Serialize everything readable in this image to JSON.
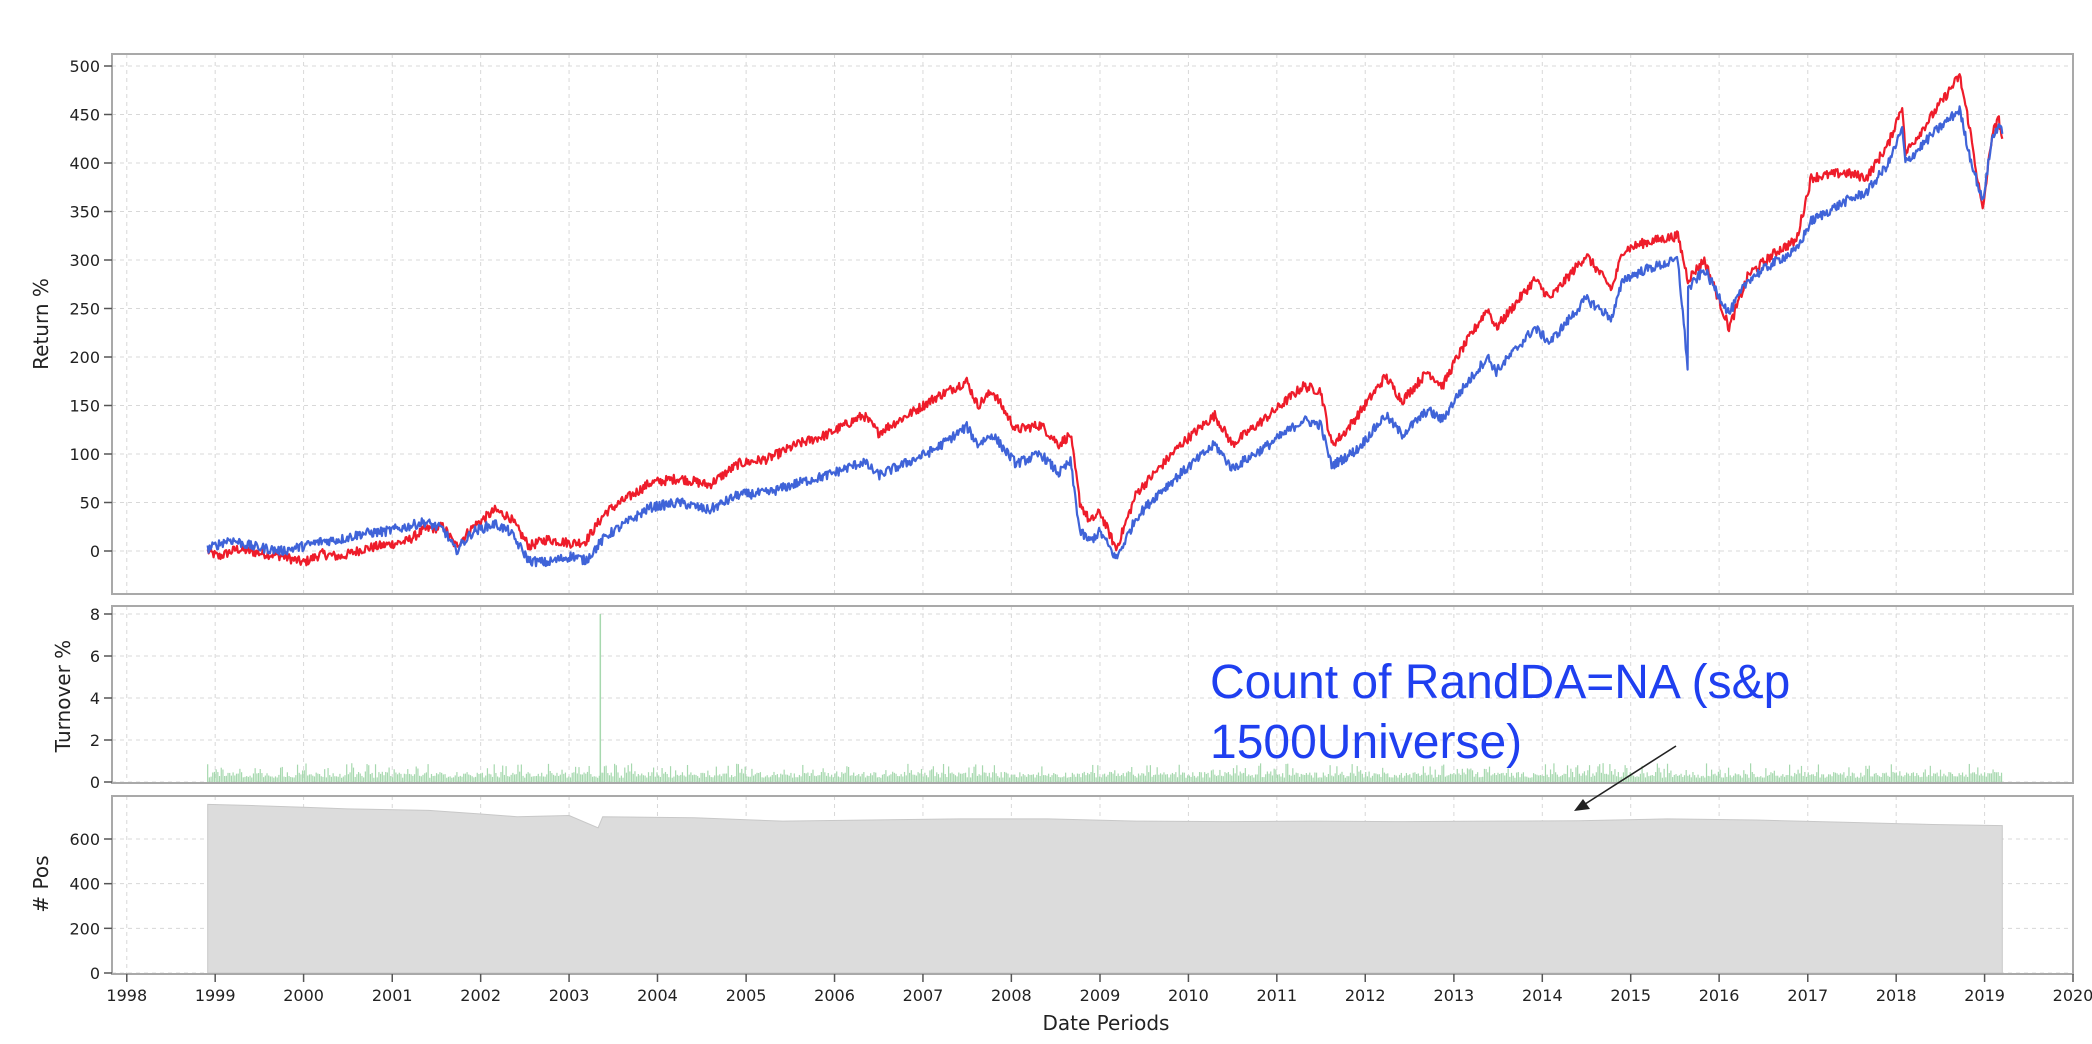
{
  "chart_data": [
    {
      "type": "line",
      "panel": "returns",
      "ylabel": "Return %",
      "ylim": [
        -45,
        520
      ],
      "yticks": [
        0,
        50,
        100,
        150,
        200,
        250,
        300,
        350,
        400,
        450,
        500
      ],
      "grid": true,
      "series": [
        {
          "color": "#ee1c2a",
          "points": [
            [
              "1998-12-01",
              0
            ],
            [
              "1999-01-15",
              -6
            ],
            [
              "1999-04-01",
              2
            ],
            [
              "1999-07-01",
              -2
            ],
            [
              "1999-10-01",
              -5
            ],
            [
              "2000-01-01",
              -12
            ],
            [
              "2000-03-15",
              -3
            ],
            [
              "2000-06-01",
              -6
            ],
            [
              "2000-09-01",
              2
            ],
            [
              "2000-12-01",
              6
            ],
            [
              "2001-03-01",
              10
            ],
            [
              "2001-05-15",
              22
            ],
            [
              "2001-08-01",
              25
            ],
            [
              "2001-09-20",
              5
            ],
            [
              "2001-12-01",
              25
            ],
            [
              "2002-03-01",
              42
            ],
            [
              "2002-05-01",
              35
            ],
            [
              "2002-07-20",
              5
            ],
            [
              "2002-10-01",
              12
            ],
            [
              "2003-01-15",
              8
            ],
            [
              "2003-03-10",
              10
            ],
            [
              "2003-06-01",
              40
            ],
            [
              "2003-09-01",
              55
            ],
            [
              "2003-12-01",
              70
            ],
            [
              "2004-04-01",
              75
            ],
            [
              "2004-08-01",
              68
            ],
            [
              "2004-12-01",
              90
            ],
            [
              "2005-04-01",
              95
            ],
            [
              "2005-08-01",
              110
            ],
            [
              "2005-12-01",
              120
            ],
            [
              "2006-05-01",
              140
            ],
            [
              "2006-07-01",
              122
            ],
            [
              "2006-12-01",
              145
            ],
            [
              "2007-02-20",
              158
            ],
            [
              "2007-07-01",
              175
            ],
            [
              "2007-08-15",
              150
            ],
            [
              "2007-10-15",
              165
            ],
            [
              "2008-01-20",
              125
            ],
            [
              "2008-05-01",
              130
            ],
            [
              "2008-07-15",
              110
            ],
            [
              "2008-09-01",
              120
            ],
            [
              "2008-10-10",
              50
            ],
            [
              "2008-11-20",
              30
            ],
            [
              "2009-01-01",
              40
            ],
            [
              "2009-03-09",
              2
            ],
            [
              "2009-06-01",
              60
            ],
            [
              "2009-09-01",
              85
            ],
            [
              "2009-12-01",
              110
            ],
            [
              "2010-04-20",
              140
            ],
            [
              "2010-07-01",
              110
            ],
            [
              "2010-12-01",
              140
            ],
            [
              "2011-04-20",
              170
            ],
            [
              "2011-07-01",
              165
            ],
            [
              "2011-08-15",
              110
            ],
            [
              "2011-10-01",
              120
            ],
            [
              "2011-12-01",
              140
            ],
            [
              "2012-03-25",
              180
            ],
            [
              "2012-06-01",
              155
            ],
            [
              "2012-09-15",
              185
            ],
            [
              "2012-11-15",
              170
            ],
            [
              "2013-01-15",
              200
            ],
            [
              "2013-05-20",
              250
            ],
            [
              "2013-06-25",
              230
            ],
            [
              "2013-12-01",
              280
            ],
            [
              "2014-02-01",
              260
            ],
            [
              "2014-07-01",
              305
            ],
            [
              "2014-10-15",
              270
            ],
            [
              "2014-12-01",
              310
            ],
            [
              "2015-03-01",
              318
            ],
            [
              "2015-07-15",
              325
            ],
            [
              "2015-08-25",
              280
            ],
            [
              "2015-11-01",
              300
            ],
            [
              "2016-02-11",
              230
            ],
            [
              "2016-05-01",
              285
            ],
            [
              "2016-09-01",
              310
            ],
            [
              "2016-11-15",
              320
            ],
            [
              "2017-01-15",
              385
            ],
            [
              "2017-06-01",
              390
            ],
            [
              "2017-09-01",
              385
            ],
            [
              "2017-12-01",
              420
            ],
            [
              "2018-01-26",
              460
            ],
            [
              "2018-02-08",
              410
            ],
            [
              "2018-06-01",
              450
            ],
            [
              "2018-09-20",
              490
            ],
            [
              "2018-10-29",
              440
            ],
            [
              "2018-12-24",
              350
            ],
            [
              "2019-02-01",
              430
            ],
            [
              "2019-03-01",
              445
            ],
            [
              "2019-03-15",
              425
            ]
          ]
        },
        {
          "color": "#3f63d8",
          "points": [
            [
              "1998-12-01",
              2
            ],
            [
              "1999-03-01",
              12
            ],
            [
              "1999-06-01",
              5
            ],
            [
              "1999-10-01",
              0
            ],
            [
              "2000-01-01",
              5
            ],
            [
              "2000-03-15",
              10
            ],
            [
              "2000-06-01",
              12
            ],
            [
              "2000-09-01",
              18
            ],
            [
              "2000-12-01",
              20
            ],
            [
              "2001-03-01",
              25
            ],
            [
              "2001-05-15",
              30
            ],
            [
              "2001-08-01",
              22
            ],
            [
              "2001-09-20",
              0
            ],
            [
              "2001-12-01",
              20
            ],
            [
              "2002-03-01",
              28
            ],
            [
              "2002-05-01",
              20
            ],
            [
              "2002-07-20",
              -10
            ],
            [
              "2002-10-01",
              -12
            ],
            [
              "2003-01-15",
              -5
            ],
            [
              "2003-03-10",
              -10
            ],
            [
              "2003-06-01",
              15
            ],
            [
              "2003-09-01",
              30
            ],
            [
              "2003-12-01",
              45
            ],
            [
              "2004-04-01",
              50
            ],
            [
              "2004-08-01",
              42
            ],
            [
              "2004-12-01",
              58
            ],
            [
              "2005-04-01",
              60
            ],
            [
              "2005-08-01",
              70
            ],
            [
              "2005-12-01",
              78
            ],
            [
              "2006-05-01",
              92
            ],
            [
              "2006-07-01",
              78
            ],
            [
              "2006-12-01",
              95
            ],
            [
              "2007-02-20",
              105
            ],
            [
              "2007-07-01",
              128
            ],
            [
              "2007-08-15",
              110
            ],
            [
              "2007-10-15",
              120
            ],
            [
              "2008-01-20",
              90
            ],
            [
              "2008-05-01",
              100
            ],
            [
              "2008-07-15",
              80
            ],
            [
              "2008-09-01",
              92
            ],
            [
              "2008-10-10",
              20
            ],
            [
              "2008-11-20",
              10
            ],
            [
              "2009-01-01",
              20
            ],
            [
              "2009-03-09",
              -8
            ],
            [
              "2009-06-01",
              35
            ],
            [
              "2009-09-01",
              60
            ],
            [
              "2009-12-01",
              80
            ],
            [
              "2010-04-20",
              110
            ],
            [
              "2010-07-01",
              85
            ],
            [
              "2010-12-01",
              110
            ],
            [
              "2011-04-20",
              135
            ],
            [
              "2011-07-01",
              130
            ],
            [
              "2011-08-15",
              88
            ],
            [
              "2011-10-01",
              95
            ],
            [
              "2011-12-01",
              105
            ],
            [
              "2012-03-25",
              140
            ],
            [
              "2012-06-01",
              120
            ],
            [
              "2012-09-15",
              145
            ],
            [
              "2012-11-15",
              135
            ],
            [
              "2013-01-15",
              160
            ],
            [
              "2013-05-20",
              200
            ],
            [
              "2013-06-25",
              185
            ],
            [
              "2013-12-01",
              230
            ],
            [
              "2014-02-01",
              215
            ],
            [
              "2014-07-01",
              260
            ],
            [
              "2014-10-15",
              240
            ],
            [
              "2014-12-01",
              280
            ],
            [
              "2015-03-01",
              290
            ],
            [
              "2015-07-15",
              300
            ],
            [
              "2015-08-24",
              190
            ],
            [
              "2015-08-26",
              270
            ],
            [
              "2015-11-01",
              290
            ],
            [
              "2016-02-11",
              245
            ],
            [
              "2016-05-01",
              280
            ],
            [
              "2016-09-01",
              300
            ],
            [
              "2016-11-15",
              310
            ],
            [
              "2017-01-15",
              340
            ],
            [
              "2017-06-01",
              360
            ],
            [
              "2017-09-01",
              370
            ],
            [
              "2017-12-01",
              400
            ],
            [
              "2018-01-26",
              435
            ],
            [
              "2018-02-08",
              400
            ],
            [
              "2018-06-01",
              430
            ],
            [
              "2018-09-20",
              455
            ],
            [
              "2018-10-29",
              410
            ],
            [
              "2018-12-24",
              360
            ],
            [
              "2019-02-01",
              425
            ],
            [
              "2019-03-01",
              440
            ],
            [
              "2019-03-15",
              430
            ]
          ]
        }
      ]
    },
    {
      "type": "bar",
      "panel": "turnover",
      "ylabel": "Turnover %",
      "ylim": [
        0,
        8.3
      ],
      "yticks": [
        0,
        2,
        4,
        6,
        8
      ],
      "grid": true,
      "color": "#a6d8ae",
      "x_start": "1998-12-01",
      "x_end": "2019-03-15",
      "typical_values": [
        0.2,
        0.9
      ],
      "spikes": [
        [
          "2003-05-10",
          8.0
        ]
      ]
    },
    {
      "type": "area",
      "panel": "positions",
      "ylabel": "# Pos",
      "ylim": [
        0,
        770
      ],
      "yticks": [
        0,
        200,
        400,
        600
      ],
      "grid": true,
      "color": "#dcdcdc",
      "points": [
        [
          "1998-12-01",
          755
        ],
        [
          "1999-06-01",
          750
        ],
        [
          "2000-01-01",
          742
        ],
        [
          "2000-07-01",
          735
        ],
        [
          "2001-06-01",
          728
        ],
        [
          "2002-01-01",
          712
        ],
        [
          "2002-06-01",
          700
        ],
        [
          "2003-01-01",
          705
        ],
        [
          "2003-05-01",
          650
        ],
        [
          "2003-05-20",
          700
        ],
        [
          "2004-06-01",
          695
        ],
        [
          "2005-06-01",
          680
        ],
        [
          "2006-06-01",
          685
        ],
        [
          "2007-06-01",
          690
        ],
        [
          "2008-06-01",
          690
        ],
        [
          "2009-06-01",
          680
        ],
        [
          "2010-06-01",
          678
        ],
        [
          "2011-06-01",
          680
        ],
        [
          "2012-06-01",
          678
        ],
        [
          "2013-06-01",
          680
        ],
        [
          "2014-06-01",
          682
        ],
        [
          "2015-06-01",
          690
        ],
        [
          "2016-06-01",
          685
        ],
        [
          "2017-06-01",
          675
        ],
        [
          "2018-06-01",
          665
        ],
        [
          "2019-03-15",
          660
        ]
      ]
    }
  ],
  "x_axis": {
    "label": "Date Periods",
    "range": [
      "1997-11-01",
      "2020-01-01"
    ],
    "tick_labels": [
      "1998",
      "1999",
      "2000",
      "2001",
      "2002",
      "2003",
      "2004",
      "2005",
      "2006",
      "2007",
      "2008",
      "2009",
      "2010",
      "2011",
      "2012",
      "2013",
      "2014",
      "2015",
      "2016",
      "2017",
      "2018",
      "2019",
      "2020"
    ]
  },
  "annotation": {
    "lines": [
      "Count of RandDA=NA (s&p",
      "1500Universe)"
    ],
    "color": "#1f3ff0"
  }
}
